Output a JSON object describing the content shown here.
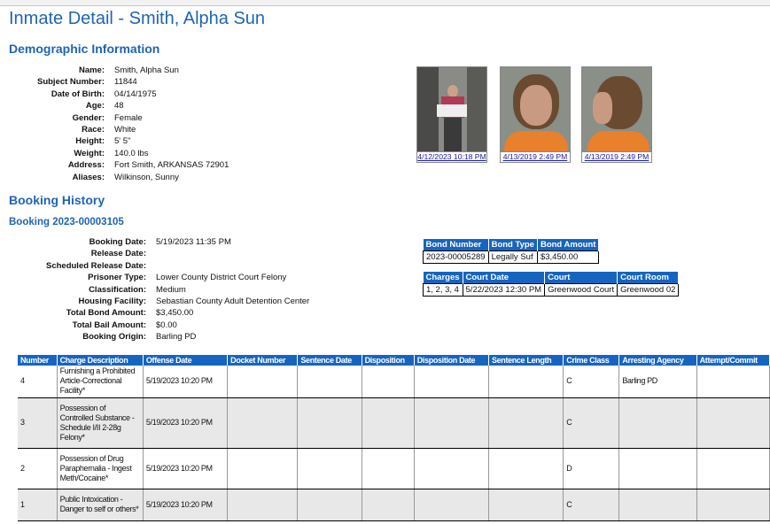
{
  "title": "Inmate Detail - Smith, Alpha Sun",
  "demographics": {
    "heading": "Demographic Information",
    "fields": [
      {
        "label": "Name:",
        "value": "Smith, Alpha Sun"
      },
      {
        "label": "Subject Number:",
        "value": "11844"
      },
      {
        "label": "Date of Birth:",
        "value": "04/14/1975"
      },
      {
        "label": "Age:",
        "value": "48"
      },
      {
        "label": "Gender:",
        "value": "Female"
      },
      {
        "label": "Race:",
        "value": "White"
      },
      {
        "label": "Height:",
        "value": "5' 5\""
      },
      {
        "label": "Weight:",
        "value": "140.0 lbs"
      },
      {
        "label": "Address:",
        "value": "Fort Smith, ARKANSAS 72901"
      },
      {
        "label": "Aliases:",
        "value": "Wilkinson, Sunny"
      }
    ],
    "photos": [
      {
        "caption": "4/12/2023 10:18 PM"
      },
      {
        "caption": "4/13/2019 2:49 PM"
      },
      {
        "caption": "4/13/2019 2:49 PM"
      }
    ]
  },
  "booking_history": {
    "heading": "Booking History",
    "booking_title": "Booking 2023-00003105",
    "fields": [
      {
        "label": "Booking Date:",
        "value": "5/19/2023 11:35 PM"
      },
      {
        "label": "Release Date:",
        "value": ""
      },
      {
        "label": "Scheduled Release Date:",
        "value": ""
      },
      {
        "label": "Prisoner Type:",
        "value": "Lower County District Court Felony"
      },
      {
        "label": "Classification:",
        "value": "Medium"
      },
      {
        "label": "Housing Facility:",
        "value": "Sebastian County Adult Detention Center"
      },
      {
        "label": "Total Bond Amount:",
        "value": "$3,450.00"
      },
      {
        "label": "Total Bail Amount:",
        "value": "$0.00"
      },
      {
        "label": "Booking Origin:",
        "value": "Barling PD"
      }
    ],
    "bond_table": {
      "headers": [
        "Bond Number",
        "Bond Type",
        "Bond Amount"
      ],
      "rows": [
        [
          "2023-00005289",
          "Legally Suf",
          "$3,450.00"
        ]
      ]
    },
    "court_table": {
      "headers": [
        "Charges",
        "Court Date",
        "Court",
        "Court Room"
      ],
      "rows": [
        [
          "1, 2, 3, 4",
          "5/22/2023 12:30 PM",
          "Greenwood Court",
          "Greenwood 02"
        ]
      ]
    },
    "charges_table": {
      "headers": [
        "Number",
        "Charge Description",
        "Offense Date",
        "Docket Number",
        "Sentence Date",
        "Disposition",
        "Disposition Date",
        "Sentence Length",
        "Crime Class",
        "Arresting Agency",
        "Attempt/Commit"
      ],
      "rows": [
        [
          "4",
          "Furnishing a Prohibited Article-Correctional Facility*",
          "5/19/2023 10:20 PM",
          "",
          "",
          "",
          "",
          "",
          "C",
          "Barling PD",
          ""
        ],
        [
          "3",
          "Possession of Controlled Substance - Schedule I/II 2-28g Felony*",
          "5/19/2023 10:20 PM",
          "",
          "",
          "",
          "",
          "",
          "C",
          "",
          ""
        ],
        [
          "2",
          "Possession of Drug Paraphernalia - Ingest Meth/Cocaine*",
          "5/19/2023 10:20 PM",
          "",
          "",
          "",
          "",
          "",
          "D",
          "",
          ""
        ],
        [
          "1",
          "Public Intoxication - Danger to self or others*",
          "5/19/2023 10:20 PM",
          "",
          "",
          "",
          "",
          "",
          "C",
          "",
          ""
        ]
      ]
    }
  },
  "colors": {
    "accent": "#1f64b4",
    "table_header": "#1565c0",
    "link": "#1a1aa8",
    "row_alt": "#e8e8e8"
  }
}
